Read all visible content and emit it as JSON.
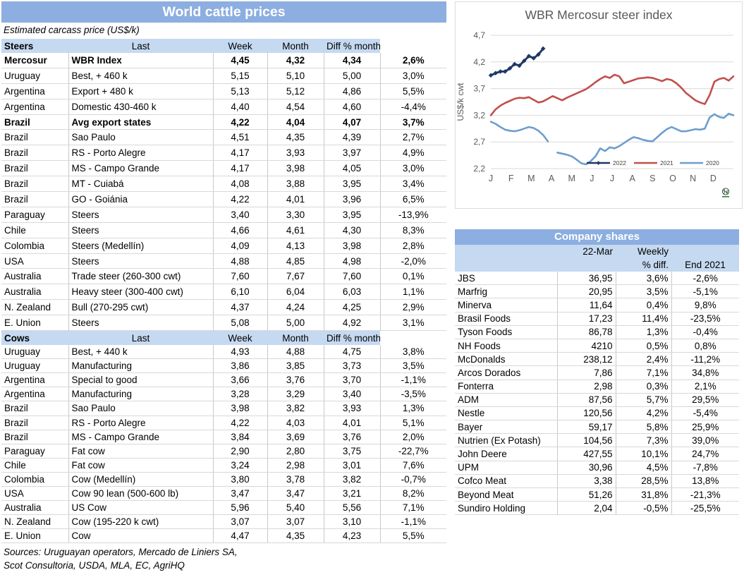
{
  "colors": {
    "title_bar": "#8CAEE0",
    "header_fill": "#C5D9F1",
    "series_2022": "#1F3864",
    "series_2021": "#C0504D",
    "series_2020": "#6D9ECE",
    "grid": "#D9D9D9",
    "axis_text": "#595959"
  },
  "prices": {
    "title": "World cattle prices",
    "subtitle": "Estimated carcass price (US$/k)",
    "columns": [
      "Last",
      "Week",
      "Month",
      "Diff % month"
    ],
    "sections": [
      {
        "label": "Steers",
        "rows": [
          {
            "country": "Mercosur",
            "item": "WBR Index",
            "last": "4,45",
            "week": "4,32",
            "month": "4,34",
            "diff": "2,6%",
            "bold": true
          },
          {
            "country": "Uruguay",
            "item": "Best, + 460 k",
            "last": "5,15",
            "week": "5,10",
            "month": "5,00",
            "diff": "3,0%",
            "bold": false
          },
          {
            "country": "Argentina",
            "item": "Export + 480 k",
            "last": "5,13",
            "week": "5,12",
            "month": "4,86",
            "diff": "5,5%",
            "bold": false
          },
          {
            "country": "Argentina",
            "item": "Domestic 430-460 k",
            "last": "4,40",
            "week": "4,54",
            "month": "4,60",
            "diff": "-4,4%",
            "bold": false
          },
          {
            "country": "Brazil",
            "item": "Avg export states",
            "last": "4,22",
            "week": "4,04",
            "month": "4,07",
            "diff": "3,7%",
            "bold": true
          },
          {
            "country": "Brazil",
            "item": "Sao Paulo",
            "last": "4,51",
            "week": "4,35",
            "month": "4,39",
            "diff": "2,7%",
            "bold": false
          },
          {
            "country": "Brazil",
            "item": "RS - Porto Alegre",
            "last": "4,17",
            "week": "3,93",
            "month": "3,97",
            "diff": "4,9%",
            "bold": false
          },
          {
            "country": "Brazil",
            "item": "MS - Campo Grande",
            "last": "4,17",
            "week": "3,98",
            "month": "4,05",
            "diff": "3,0%",
            "bold": false
          },
          {
            "country": "Brazil",
            "item": "MT - Cuiabá",
            "last": "4,08",
            "week": "3,88",
            "month": "3,95",
            "diff": "3,4%",
            "bold": false
          },
          {
            "country": "Brazil",
            "item": "GO - Goiánia",
            "last": "4,22",
            "week": "4,01",
            "month": "3,96",
            "diff": "6,5%",
            "bold": false
          },
          {
            "country": "Paraguay",
            "item": "Steers",
            "last": "3,40",
            "week": "3,30",
            "month": "3,95",
            "diff": "-13,9%",
            "bold": false
          },
          {
            "country": "Chile",
            "item": "Steers",
            "last": "4,66",
            "week": "4,61",
            "month": "4,30",
            "diff": "8,3%",
            "bold": false
          },
          {
            "country": "Colombia",
            "item": "Steers (Medellín)",
            "last": "4,09",
            "week": "4,13",
            "month": "3,98",
            "diff": "2,8%",
            "bold": false
          },
          {
            "country": "USA",
            "item": "Steers",
            "last": "4,88",
            "week": "4,85",
            "month": "4,98",
            "diff": "-2,0%",
            "bold": false
          },
          {
            "country": "Australia",
            "item": "Trade steer (260-300 cwt)",
            "last": "7,60",
            "week": "7,67",
            "month": "7,60",
            "diff": "0,1%",
            "bold": false
          },
          {
            "country": "Australia",
            "item": "Heavy steer (300-400 cwt)",
            "last": "6,10",
            "week": "6,04",
            "month": "6,03",
            "diff": "1,1%",
            "bold": false
          },
          {
            "country": "N. Zealand",
            "item": "Bull (270-295 cwt)",
            "last": "4,37",
            "week": "4,24",
            "month": "4,25",
            "diff": "2,9%",
            "bold": false
          },
          {
            "country": "E. Union",
            "item": "Steers",
            "last": "5,08",
            "week": "5,00",
            "month": "4,92",
            "diff": "3,1%",
            "bold": false
          }
        ]
      },
      {
        "label": "Cows",
        "rows": [
          {
            "country": "Uruguay",
            "item": "Best, + 440 k",
            "last": "4,93",
            "week": "4,88",
            "month": "4,75",
            "diff": "3,8%",
            "bold": false
          },
          {
            "country": "Uruguay",
            "item": "Manufacturing",
            "last": "3,86",
            "week": "3,85",
            "month": "3,73",
            "diff": "3,5%",
            "bold": false
          },
          {
            "country": "Argentina",
            "item": "Special to good",
            "last": "3,66",
            "week": "3,76",
            "month": "3,70",
            "diff": "-1,1%",
            "bold": false
          },
          {
            "country": "Argentina",
            "item": "Manufacturing",
            "last": "3,28",
            "week": "3,29",
            "month": "3,40",
            "diff": "-3,5%",
            "bold": false
          },
          {
            "country": "Brazil",
            "item": "Sao Paulo",
            "last": "3,98",
            "week": "3,82",
            "month": "3,93",
            "diff": "1,3%",
            "bold": false
          },
          {
            "country": "Brazil",
            "item": "RS - Porto Alegre",
            "last": "4,22",
            "week": "4,03",
            "month": "4,01",
            "diff": "5,1%",
            "bold": false
          },
          {
            "country": "Brazil",
            "item": "MS - Campo Grande",
            "last": "3,84",
            "week": "3,69",
            "month": "3,76",
            "diff": "2,0%",
            "bold": false
          },
          {
            "country": "Paraguay",
            "item": "Fat cow",
            "last": "2,90",
            "week": "2,80",
            "month": "3,75",
            "diff": "-22,7%",
            "bold": false
          },
          {
            "country": "Chile",
            "item": "Fat cow",
            "last": "3,24",
            "week": "2,98",
            "month": "3,01",
            "diff": "7,6%",
            "bold": false
          },
          {
            "country": "Colombia",
            "item": "Cow (Medellín)",
            "last": "3,80",
            "week": "3,78",
            "month": "3,82",
            "diff": "-0,7%",
            "bold": false
          },
          {
            "country": "USA",
            "item": "Cow 90 lean (500-600 lb)",
            "last": "3,47",
            "week": "3,47",
            "month": "3,21",
            "diff": "8,2%",
            "bold": false
          },
          {
            "country": "Australia",
            "item": "US Cow",
            "last": "5,96",
            "week": "5,40",
            "month": "5,56",
            "diff": "7,1%",
            "bold": false
          },
          {
            "country": "N. Zealand",
            "item": "Cow (195-220 k cwt)",
            "last": "3,07",
            "week": "3,07",
            "month": "3,10",
            "diff": "-1,1%",
            "bold": false
          },
          {
            "country": "E. Union",
            "item": "Cow",
            "last": "4,47",
            "week": "4,35",
            "month": "4,23",
            "diff": "5,5%",
            "bold": false
          }
        ]
      }
    ],
    "sources_line1": "Sources: Uruguayan operators, Mercado de Liniers SA,",
    "sources_line2": "Scot Consultoria, USDA, MLA, EC, AgriHQ"
  },
  "chart_data": {
    "type": "line",
    "title": "WBR Mercosur steer index",
    "ylabel": "US$/k cwt",
    "ylim": [
      2.2,
      4.7
    ],
    "yticks": [
      "2,2",
      "2,7",
      "3,2",
      "3,7",
      "4,2",
      "4,7"
    ],
    "x_months": [
      "J",
      "F",
      "M",
      "A",
      "M",
      "J",
      "J",
      "A",
      "S",
      "O",
      "N",
      "D"
    ],
    "x_unit": "weeks Jan-Dec (52)",
    "grid": true,
    "legend_position": "inside-bottom-right",
    "series": [
      {
        "name": "2022",
        "marker": "diamond",
        "values": [
          3.95,
          3.99,
          4.02,
          4.02,
          4.08,
          4.16,
          4.13,
          4.22,
          4.31,
          4.27,
          4.34,
          4.45
        ]
      },
      {
        "name": "2021",
        "marker": "none",
        "values": [
          3.2,
          3.31,
          3.38,
          3.43,
          3.47,
          3.51,
          3.53,
          3.52,
          3.54,
          3.49,
          3.44,
          3.46,
          3.51,
          3.56,
          3.52,
          3.48,
          3.53,
          3.57,
          3.61,
          3.65,
          3.69,
          3.75,
          3.82,
          3.88,
          3.93,
          3.9,
          3.96,
          3.93,
          3.8,
          3.83,
          3.86,
          3.89,
          3.9,
          3.91,
          3.9,
          3.87,
          3.84,
          3.88,
          3.86,
          3.8,
          3.72,
          3.62,
          3.55,
          3.48,
          3.44,
          3.41,
          3.58,
          3.83,
          3.88,
          3.9,
          3.85,
          3.93
        ]
      },
      {
        "name": "2020",
        "marker": "none",
        "values": [
          3.08,
          3.04,
          2.98,
          2.93,
          2.91,
          2.9,
          2.92,
          2.95,
          2.98,
          2.96,
          2.91,
          2.83,
          2.71,
          null,
          2.5,
          2.48,
          2.46,
          2.43,
          2.37,
          2.3,
          2.28,
          2.34,
          2.43,
          2.58,
          2.53,
          2.6,
          2.58,
          2.62,
          2.68,
          2.74,
          2.79,
          2.77,
          2.74,
          2.72,
          2.71,
          2.79,
          2.87,
          2.94,
          2.98,
          2.94,
          2.9,
          2.9,
          2.92,
          2.94,
          2.93,
          2.95,
          3.16,
          3.22,
          3.17,
          3.15,
          3.23,
          3.2
        ]
      }
    ]
  },
  "shares": {
    "title": "Company shares",
    "header": {
      "date": "22-Mar",
      "weekly_line1": "Weekly",
      "weekly_line2": "% diff.",
      "end": "End 2021"
    },
    "rows": [
      {
        "name": "JBS",
        "price": "36,95",
        "weekly": "3,6%",
        "end2021": "-2,6%"
      },
      {
        "name": "Marfrig",
        "price": "20,95",
        "weekly": "3,5%",
        "end2021": "-5,1%"
      },
      {
        "name": "Minerva",
        "price": "11,64",
        "weekly": "0,4%",
        "end2021": "9,8%"
      },
      {
        "name": "Brasil Foods",
        "price": "17,23",
        "weekly": "11,4%",
        "end2021": "-23,5%"
      },
      {
        "name": "Tyson Foods",
        "price": "86,78",
        "weekly": "1,3%",
        "end2021": "-0,4%"
      },
      {
        "name": "NH Foods",
        "price": "4210",
        "weekly": "0,5%",
        "end2021": "0,8%"
      },
      {
        "name": "McDonalds",
        "price": "238,12",
        "weekly": "2,4%",
        "end2021": "-11,2%"
      },
      {
        "name": "Arcos Dorados",
        "price": "7,86",
        "weekly": "7,1%",
        "end2021": "34,8%"
      },
      {
        "name": "Fonterra",
        "price": "2,98",
        "weekly": "0,3%",
        "end2021": "2,1%"
      },
      {
        "name": "ADM",
        "price": "87,56",
        "weekly": "5,7%",
        "end2021": "29,5%"
      },
      {
        "name": "Nestle",
        "price": "120,56",
        "weekly": "4,2%",
        "end2021": "-5,4%"
      },
      {
        "name": "Bayer",
        "price": "59,17",
        "weekly": "5,8%",
        "end2021": "25,9%"
      },
      {
        "name": "Nutrien (Ex Potash)",
        "price": "104,56",
        "weekly": "7,3%",
        "end2021": "39,0%"
      },
      {
        "name": "John Deere",
        "price": "427,55",
        "weekly": "10,1%",
        "end2021": "24,7%"
      },
      {
        "name": "UPM",
        "price": "30,96",
        "weekly": "4,5%",
        "end2021": "-7,8%"
      },
      {
        "name": "Cofco Meat",
        "price": "3,38",
        "weekly": "28,5%",
        "end2021": "13,8%"
      },
      {
        "name": "Beyond Meat",
        "price": "51,26",
        "weekly": "31,8%",
        "end2021": "-21,3%"
      },
      {
        "name": "Sundiro Holding",
        "price": "2,04",
        "weekly": "-0,5%",
        "end2021": "-25,5%"
      }
    ]
  }
}
